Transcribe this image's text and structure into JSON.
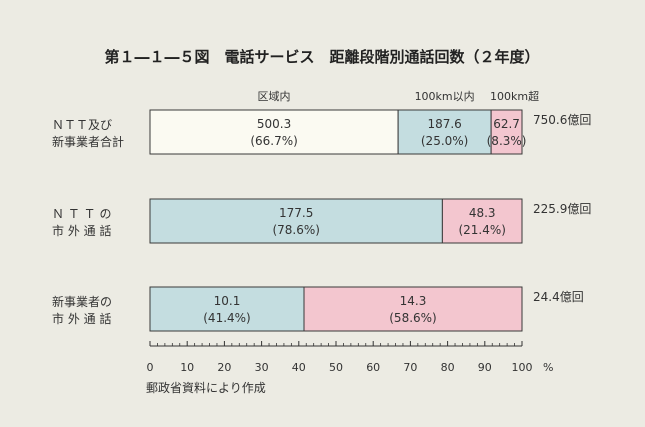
{
  "chart_data": {
    "type": "bar",
    "orientation": "horizontal",
    "stacked": true,
    "title": "第１―１―５図　電話サービス　距離段階別通話回数（２年度）",
    "source": "郵政省資料により作成",
    "xlim": [
      0,
      100
    ],
    "x_unit": "%",
    "x_ticks": [
      0,
      10,
      20,
      30,
      40,
      50,
      60,
      70,
      80,
      90,
      100
    ],
    "grid": false,
    "headers": [
      "区域内",
      "100km以内",
      "100km超"
    ],
    "series_colors": [
      "#fbfaf2",
      "#c4dde0",
      "#f3c6cf"
    ],
    "categories": [
      {
        "lines": [
          "ＮＴＴ及び",
          "新事業者合計"
        ],
        "total": "750.6億回",
        "segments": [
          {
            "value": 500.3,
            "value_label": "500.3",
            "pct": 66.7,
            "pct_label": "(66.7%)",
            "series": 0
          },
          {
            "value": 187.6,
            "value_label": "187.6",
            "pct": 25.0,
            "pct_label": "(25.0%)",
            "series": 1
          },
          {
            "value": 62.7,
            "value_label": "62.7",
            "pct": 8.3,
            "pct_label": "(8.3%)",
            "series": 2
          }
        ]
      },
      {
        "lines": [
          "Ｎ Ｔ Ｔ の",
          "市 外 通 話"
        ],
        "total": "225.9億回",
        "segments": [
          {
            "value": 177.5,
            "value_label": "177.5",
            "pct": 78.6,
            "pct_label": "(78.6%)",
            "series": 1
          },
          {
            "value": 48.3,
            "value_label": "48.3",
            "pct": 21.4,
            "pct_label": "(21.4%)",
            "series": 2
          }
        ]
      },
      {
        "lines": [
          "新事業者の",
          "市 外 通 話"
        ],
        "total": "24.4億回",
        "segments": [
          {
            "value": 10.1,
            "value_label": "10.1",
            "pct": 41.4,
            "pct_label": "(41.4%)",
            "series": 1
          },
          {
            "value": 14.3,
            "value_label": "14.3",
            "pct": 58.6,
            "pct_label": "(58.6%)",
            "series": 2
          }
        ]
      }
    ]
  }
}
